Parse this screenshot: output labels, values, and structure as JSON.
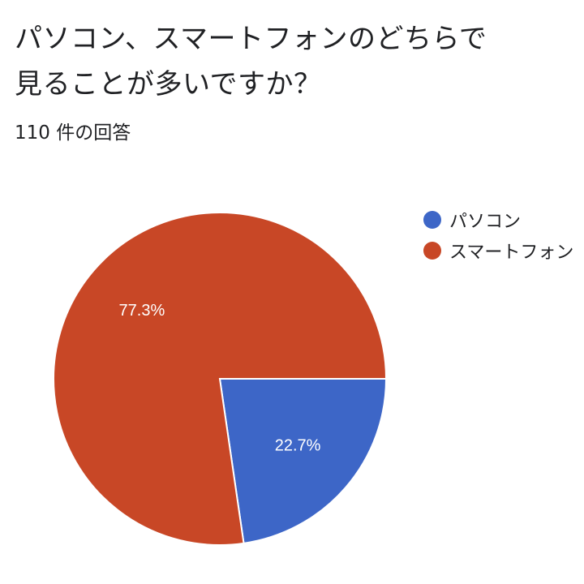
{
  "question": {
    "line1": "パソコン、スマートフォンのどちらで",
    "line2": "見ることが多いですか？"
  },
  "response_count": "110 件の回答",
  "colors": {
    "pc": "#3d66c7",
    "smartphone": "#c84726"
  },
  "chart_data": {
    "type": "pie",
    "categories": [
      "パソコン",
      "スマートフォン"
    ],
    "values": [
      22.7,
      77.3
    ],
    "labels": [
      "22.7%",
      "77.3%"
    ],
    "colors": [
      "#3d66c7",
      "#c84726"
    ],
    "legend": [
      "パソコン",
      "スマートフォン"
    ],
    "legend_position": "right"
  }
}
